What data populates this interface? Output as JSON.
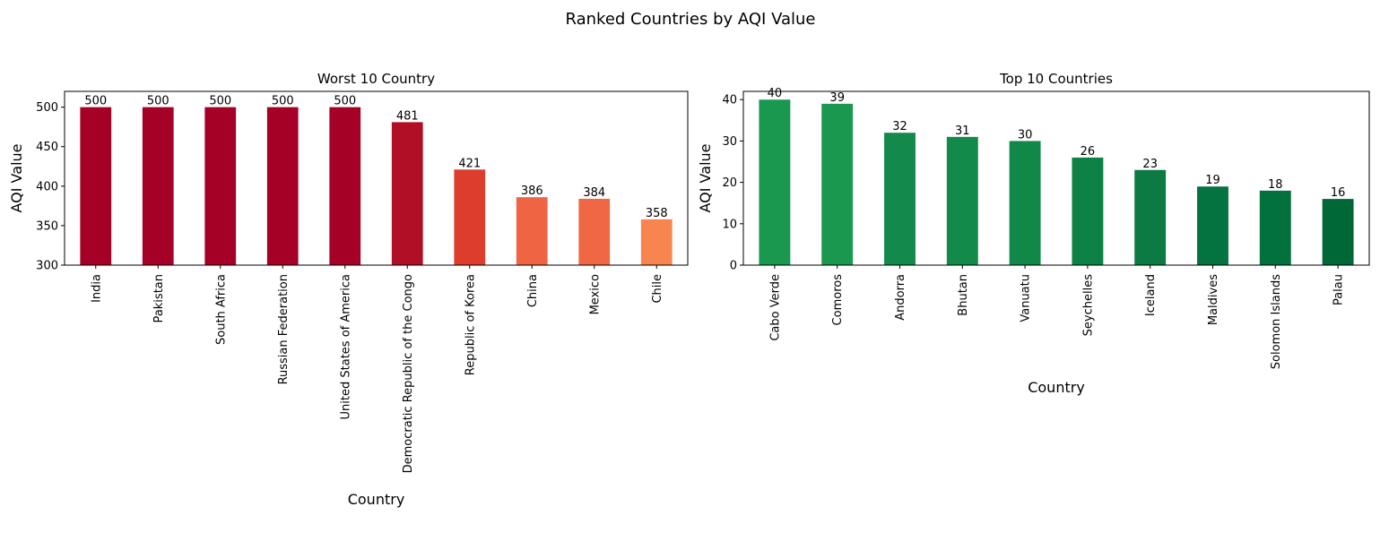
{
  "figure": {
    "suptitle": "Ranked Countries by AQI Value"
  },
  "chart_data": [
    {
      "type": "bar",
      "title": "Worst 10 Country",
      "xlabel": "Country",
      "ylabel": "AQI Value",
      "ylim": [
        300,
        520
      ],
      "yticks": [
        300,
        350,
        400,
        450,
        500
      ],
      "grid": false,
      "categories": [
        "India",
        "Pakistan",
        "South Africa",
        "Russian Federation",
        "United States of America",
        "Democratic Republic of the Congo",
        "Republic of Korea",
        "China",
        "Mexico",
        "Chile"
      ],
      "values": [
        500,
        500,
        500,
        500,
        500,
        481,
        421,
        386,
        384,
        358
      ],
      "colors": [
        "#a50026",
        "#a50026",
        "#a50026",
        "#a50026",
        "#a50026",
        "#b10f26",
        "#dd3d2d",
        "#ef6544",
        "#f06744",
        "#f88450"
      ]
    },
    {
      "type": "bar",
      "title": "Top 10 Countries",
      "xlabel": "Country",
      "ylabel": "AQI Value",
      "ylim": [
        0,
        42
      ],
      "yticks": [
        0,
        10,
        20,
        30,
        40
      ],
      "grid": false,
      "categories": [
        "Cabo Verde",
        "Comoros",
        "Andorra",
        "Bhutan",
        "Vanuatu",
        "Seychelles",
        "Iceland",
        "Maldives",
        "Solomon Islands",
        "Palau"
      ],
      "values": [
        40,
        39,
        32,
        31,
        30,
        26,
        23,
        19,
        18,
        16
      ],
      "colors": [
        "#1a9850",
        "#1a9850",
        "#138a4b",
        "#128a4a",
        "#118848",
        "#0d8146",
        "#0b7b43",
        "#04733f",
        "#03713e",
        "#006837"
      ]
    }
  ]
}
